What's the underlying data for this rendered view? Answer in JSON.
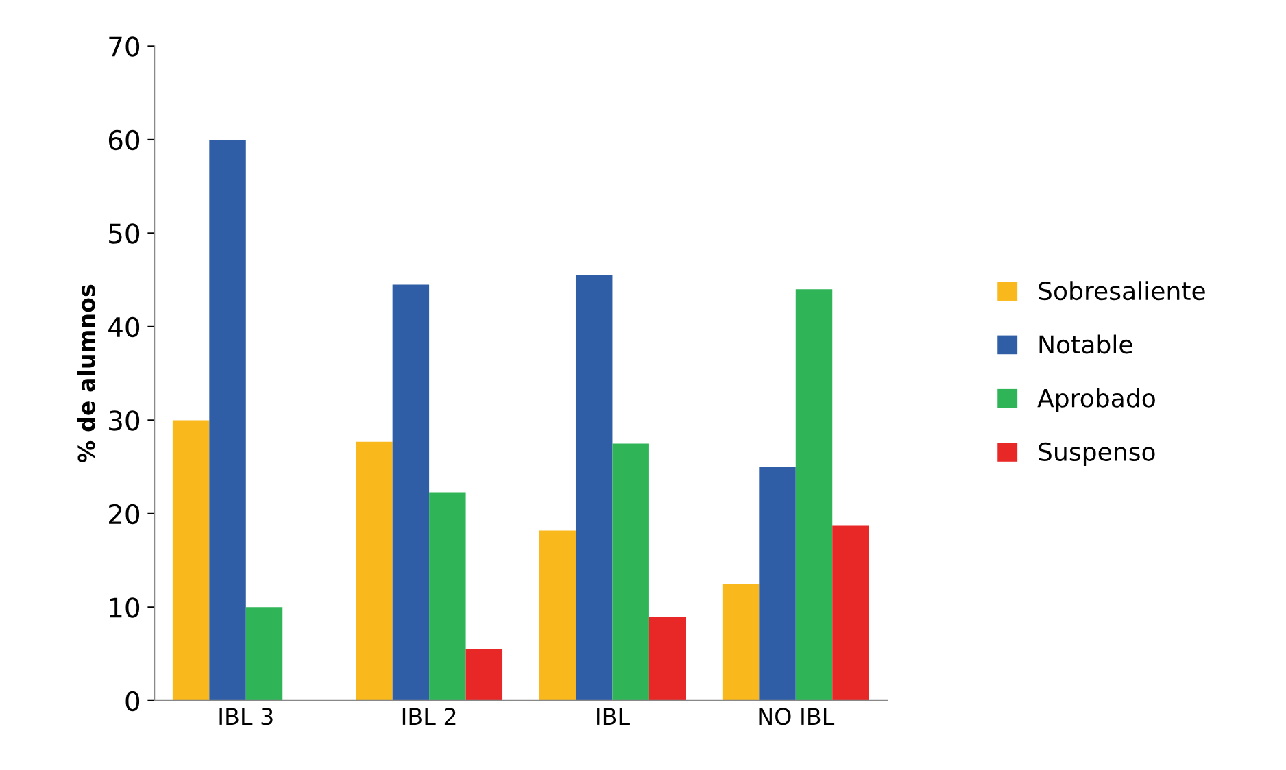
{
  "chart_data": {
    "type": "bar",
    "ylabel": "% de alumnos",
    "categories": [
      "IBL 3",
      "IBL 2",
      "IBL",
      "NO IBL"
    ],
    "series": [
      {
        "name": "Sobresaliente",
        "color": "#f9b81c",
        "values": [
          30,
          27.7,
          18.2,
          12.5
        ]
      },
      {
        "name": "Notable",
        "color": "#2f5ea6",
        "values": [
          60,
          44.5,
          45.5,
          25
        ]
      },
      {
        "name": "Aprobado",
        "color": "#2fb457",
        "values": [
          10,
          22.3,
          27.5,
          44
        ]
      },
      {
        "name": "Suspenso",
        "color": "#e82727",
        "values": [
          0,
          5.5,
          9,
          18.7
        ]
      }
    ],
    "ylim": [
      0,
      70
    ],
    "yticks": [
      0,
      10,
      20,
      30,
      40,
      50,
      60,
      70
    ],
    "grid": false,
    "legend": "right"
  }
}
